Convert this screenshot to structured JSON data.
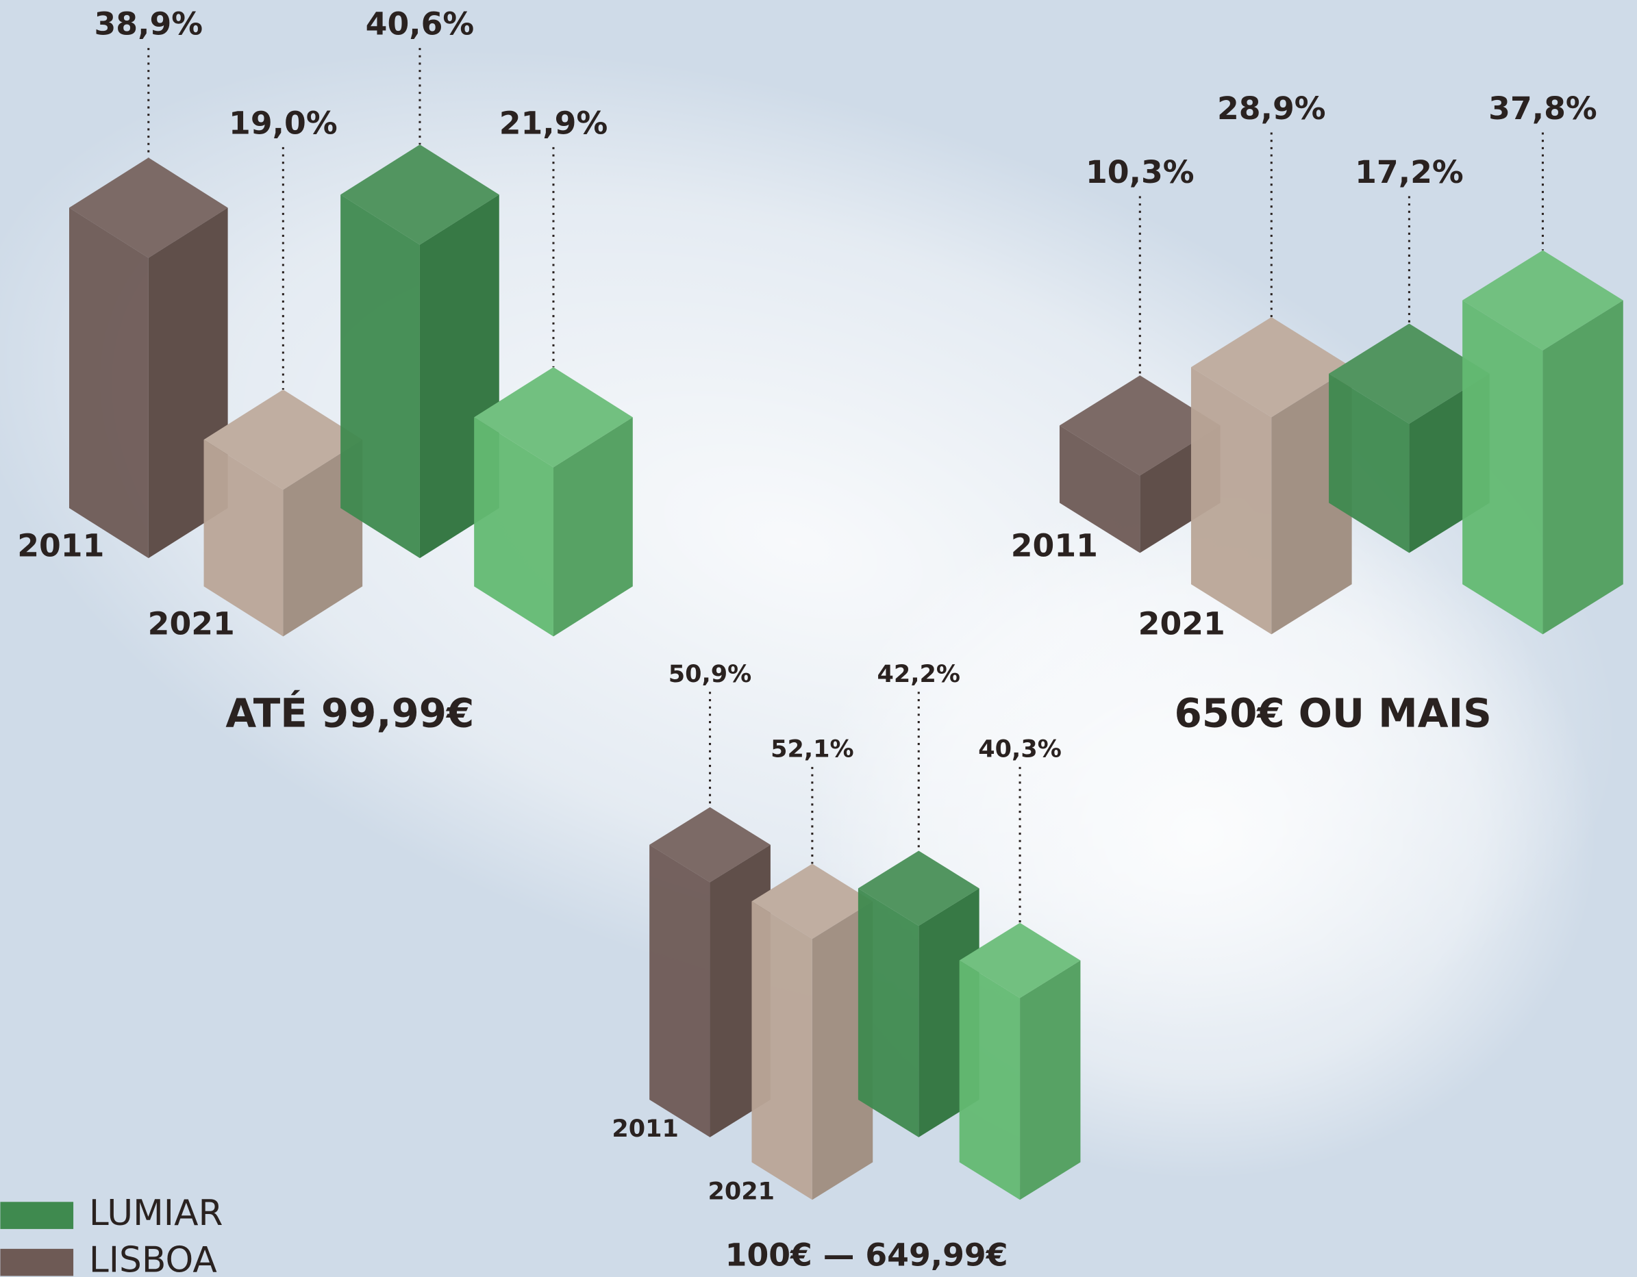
{
  "legend": [
    {
      "name": "LUMIAR",
      "color": "#3f8a4f"
    },
    {
      "name": "LISBOA",
      "color": "#6e5a55"
    }
  ],
  "chart_data": [
    {
      "type": "bar3d",
      "title": "ATÉ 99,99€",
      "categories": [
        "2011",
        "2021"
      ],
      "series": [
        {
          "colors": [
            "#6e5a55",
            "#b9a597"
          ],
          "values": [
            38.9,
            19.0
          ],
          "value_labels": [
            "38,9%",
            "19,0%"
          ]
        },
        {
          "colors": [
            "#3f8a4f",
            "#63b972"
          ],
          "values": [
            40.6,
            21.9
          ],
          "value_labels": [
            "40,6%",
            "21,9%"
          ]
        }
      ]
    },
    {
      "type": "bar3d",
      "title": "650€ OU MAIS",
      "categories": [
        "2011",
        "2021"
      ],
      "series": [
        {
          "colors": [
            "#6e5a55",
            "#b9a597"
          ],
          "values": [
            10.3,
            28.9
          ],
          "value_labels": [
            "10,3%",
            "28,9%"
          ]
        },
        {
          "colors": [
            "#3f8a4f",
            "#63b972"
          ],
          "values": [
            17.2,
            37.8
          ],
          "value_labels": [
            "17,2%",
            "37,8%"
          ]
        }
      ]
    },
    {
      "type": "bar3d",
      "title": "100€ — 649,99€",
      "categories": [
        "2011",
        "2021"
      ],
      "series": [
        {
          "colors": [
            "#6e5a55",
            "#b9a597"
          ],
          "values": [
            50.9,
            52.1
          ],
          "value_labels": [
            "50,9%",
            "52,1%"
          ]
        },
        {
          "colors": [
            "#3f8a4f",
            "#63b972"
          ],
          "values": [
            42.2,
            40.3
          ],
          "value_labels": [
            "42,2%",
            "40,3%"
          ]
        }
      ]
    }
  ]
}
